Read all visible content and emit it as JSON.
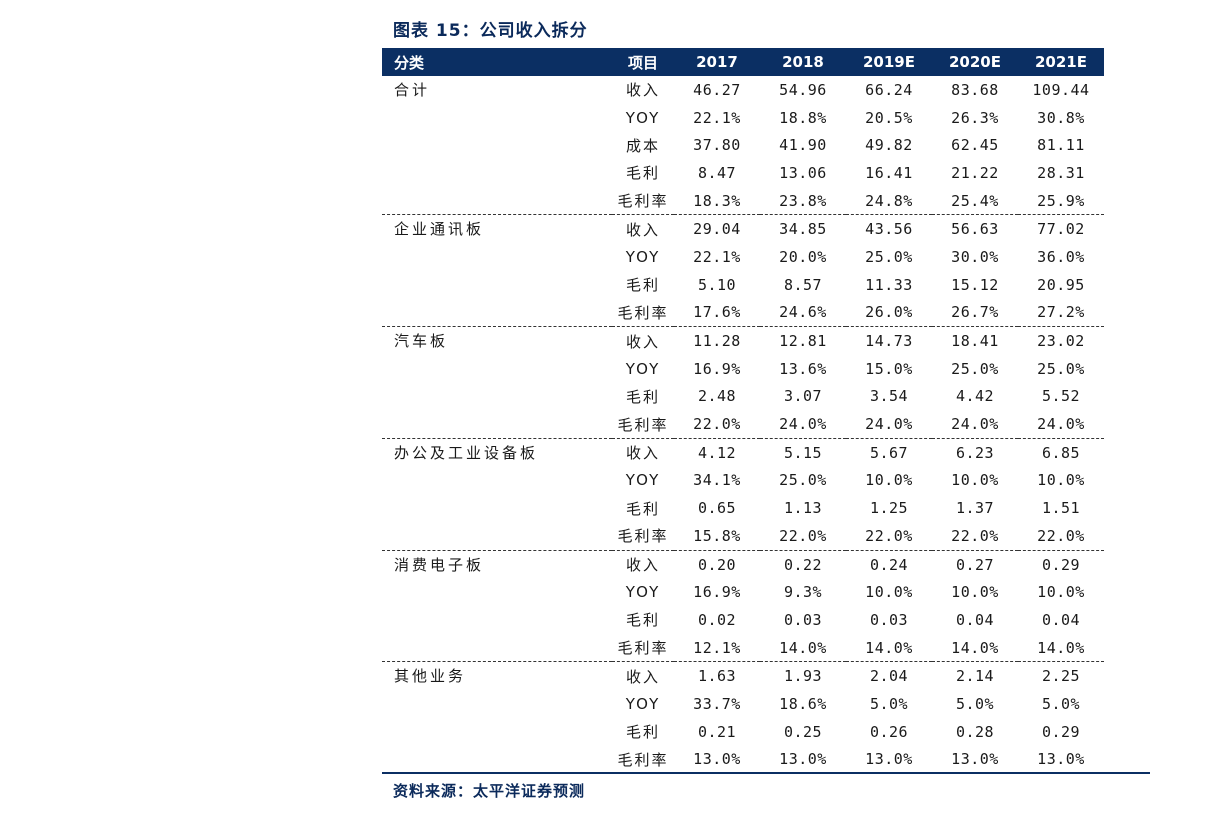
{
  "title": "图表 15：公司收入拆分",
  "source": "资料来源：太平洋证券预测",
  "headers": [
    "分类",
    "项目",
    "2017",
    "2018",
    "2019E",
    "2020E",
    "2021E"
  ],
  "groups": [
    {
      "category": "合计",
      "rows": [
        {
          "item": "收入",
          "values": [
            "46.27",
            "54.96",
            "66.24",
            "83.68",
            "109.44"
          ]
        },
        {
          "item": "YOY",
          "values": [
            "22.1%",
            "18.8%",
            "20.5%",
            "26.3%",
            "30.8%"
          ]
        },
        {
          "item": "成本",
          "values": [
            "37.80",
            "41.90",
            "49.82",
            "62.45",
            "81.11"
          ]
        },
        {
          "item": "毛利",
          "values": [
            "8.47",
            "13.06",
            "16.41",
            "21.22",
            "28.31"
          ]
        },
        {
          "item": "毛利率",
          "values": [
            "18.3%",
            "23.8%",
            "24.8%",
            "25.4%",
            "25.9%"
          ]
        }
      ]
    },
    {
      "category": "企业通讯板",
      "rows": [
        {
          "item": "收入",
          "values": [
            "29.04",
            "34.85",
            "43.56",
            "56.63",
            "77.02"
          ]
        },
        {
          "item": "YOY",
          "values": [
            "22.1%",
            "20.0%",
            "25.0%",
            "30.0%",
            "36.0%"
          ]
        },
        {
          "item": "毛利",
          "values": [
            "5.10",
            "8.57",
            "11.33",
            "15.12",
            "20.95"
          ]
        },
        {
          "item": "毛利率",
          "values": [
            "17.6%",
            "24.6%",
            "26.0%",
            "26.7%",
            "27.2%"
          ]
        }
      ]
    },
    {
      "category": "汽车板",
      "rows": [
        {
          "item": "收入",
          "values": [
            "11.28",
            "12.81",
            "14.73",
            "18.41",
            "23.02"
          ]
        },
        {
          "item": "YOY",
          "values": [
            "16.9%",
            "13.6%",
            "15.0%",
            "25.0%",
            "25.0%"
          ]
        },
        {
          "item": "毛利",
          "values": [
            "2.48",
            "3.07",
            "3.54",
            "4.42",
            "5.52"
          ]
        },
        {
          "item": "毛利率",
          "values": [
            "22.0%",
            "24.0%",
            "24.0%",
            "24.0%",
            "24.0%"
          ]
        }
      ]
    },
    {
      "category": "办公及工业设备板",
      "rows": [
        {
          "item": "收入",
          "values": [
            "4.12",
            "5.15",
            "5.67",
            "6.23",
            "6.85"
          ]
        },
        {
          "item": "YOY",
          "values": [
            "34.1%",
            "25.0%",
            "10.0%",
            "10.0%",
            "10.0%"
          ]
        },
        {
          "item": "毛利",
          "values": [
            "0.65",
            "1.13",
            "1.25",
            "1.37",
            "1.51"
          ]
        },
        {
          "item": "毛利率",
          "values": [
            "15.8%",
            "22.0%",
            "22.0%",
            "22.0%",
            "22.0%"
          ]
        }
      ]
    },
    {
      "category": "消费电子板",
      "rows": [
        {
          "item": "收入",
          "values": [
            "0.20",
            "0.22",
            "0.24",
            "0.27",
            "0.29"
          ]
        },
        {
          "item": "YOY",
          "values": [
            "16.9%",
            "9.3%",
            "10.0%",
            "10.0%",
            "10.0%"
          ]
        },
        {
          "item": "毛利",
          "values": [
            "0.02",
            "0.03",
            "0.03",
            "0.04",
            "0.04"
          ]
        },
        {
          "item": "毛利率",
          "values": [
            "12.1%",
            "14.0%",
            "14.0%",
            "14.0%",
            "14.0%"
          ]
        }
      ]
    },
    {
      "category": "其他业务",
      "rows": [
        {
          "item": "收入",
          "values": [
            "1.63",
            "1.93",
            "2.04",
            "2.14",
            "2.25"
          ]
        },
        {
          "item": "YOY",
          "values": [
            "33.7%",
            "18.6%",
            "5.0%",
            "5.0%",
            "5.0%"
          ]
        },
        {
          "item": "毛利",
          "values": [
            "0.21",
            "0.25",
            "0.26",
            "0.28",
            "0.29"
          ]
        },
        {
          "item": "毛利率",
          "values": [
            "13.0%",
            "13.0%",
            "13.0%",
            "13.0%",
            "13.0%"
          ]
        }
      ]
    }
  ]
}
